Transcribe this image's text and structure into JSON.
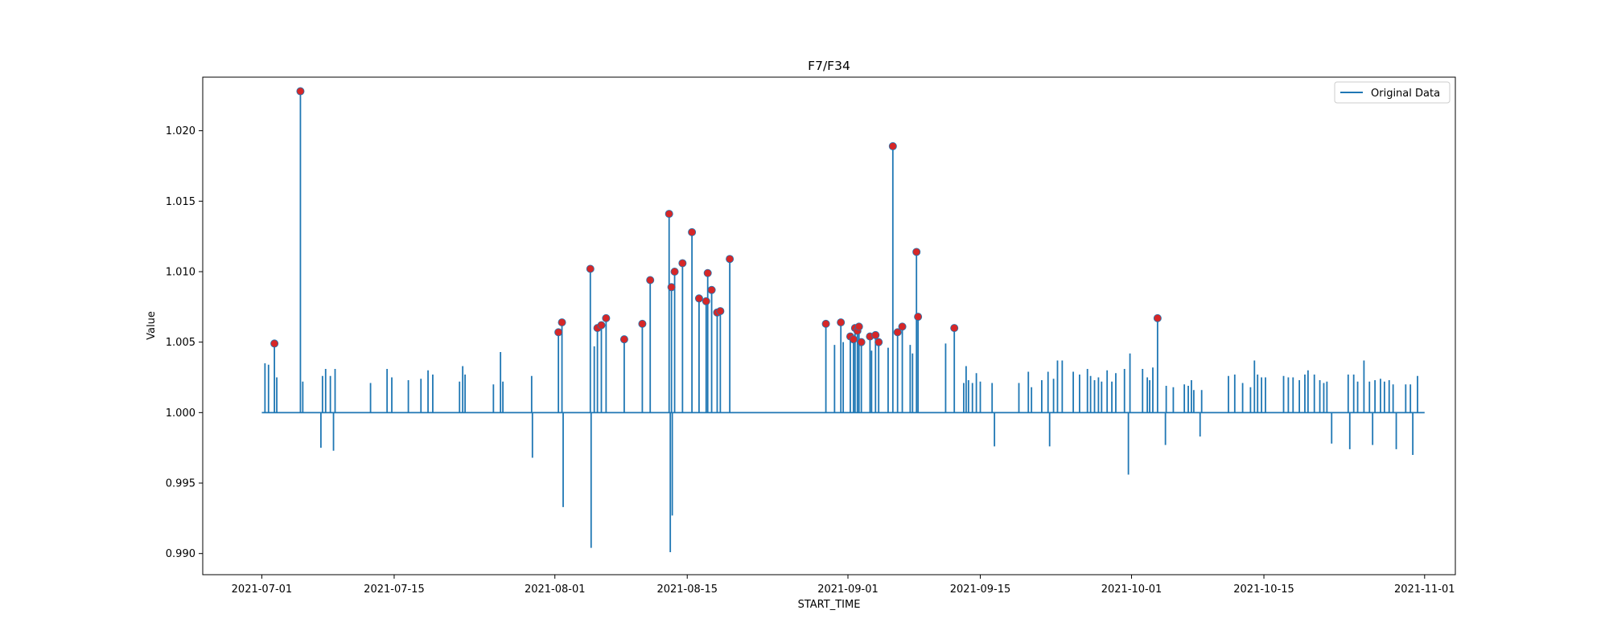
{
  "chart_data": {
    "type": "line",
    "title": "F7/F34",
    "xlabel": "START_TIME",
    "ylabel": "Value",
    "x_ticks": [
      "2021-07-01",
      "2021-07-15",
      "2021-08-01",
      "2021-08-15",
      "2021-09-01",
      "2021-09-15",
      "2021-10-01",
      "2021-10-15",
      "2021-11-01"
    ],
    "y_ticks": [
      0.99,
      0.995,
      1.0,
      1.005,
      1.01,
      1.015,
      1.02
    ],
    "xlim": [
      "2021-06-24T18:00",
      "2021-11-04T06:00"
    ],
    "ylim": [
      0.9885,
      1.0238
    ],
    "legend": {
      "position": "top-right",
      "entries": [
        "Original Data"
      ]
    },
    "series": [
      {
        "name": "Original Data",
        "color": "#1f77b4",
        "baseline": 1.0,
        "spikes": [
          [
            "2021-07-01T08:00",
            1.0035
          ],
          [
            "2021-07-01T17:00",
            1.0034
          ],
          [
            "2021-07-02T08:00",
            1.0049
          ],
          [
            "2021-07-02T14:00",
            1.0025
          ],
          [
            "2021-07-05T02:00",
            1.0228
          ],
          [
            "2021-07-05T08:00",
            1.0022
          ],
          [
            "2021-07-07T06:00",
            0.9975
          ],
          [
            "2021-07-07T10:00",
            1.0026
          ],
          [
            "2021-07-07T18:00",
            1.0031
          ],
          [
            "2021-07-08T06:00",
            1.0026
          ],
          [
            "2021-07-08T14:00",
            0.9973
          ],
          [
            "2021-07-08T18:00",
            1.0031
          ],
          [
            "2021-07-12T12:00",
            1.0021
          ],
          [
            "2021-07-14T06:00",
            1.0031
          ],
          [
            "2021-07-14T18:00",
            1.0025
          ],
          [
            "2021-07-16T12:00",
            1.0023
          ],
          [
            "2021-07-17T20:00",
            1.0024
          ],
          [
            "2021-07-18T14:00",
            1.003
          ],
          [
            "2021-07-19T02:00",
            1.0027
          ],
          [
            "2021-07-21T22:00",
            1.0022
          ],
          [
            "2021-07-22T06:00",
            1.0033
          ],
          [
            "2021-07-22T12:00",
            1.0027
          ],
          [
            "2021-07-25T12:00",
            1.002
          ],
          [
            "2021-07-26T06:00",
            1.0043
          ],
          [
            "2021-07-26T12:00",
            1.0022
          ],
          [
            "2021-07-29T13:00",
            1.0026
          ],
          [
            "2021-07-29T15:00",
            0.9968
          ],
          [
            "2021-08-01T09:00",
            1.0057
          ],
          [
            "2021-08-01T18:00",
            1.0064
          ],
          [
            "2021-08-01T21:00",
            0.9933
          ],
          [
            "2021-08-04T18:00",
            1.0102
          ],
          [
            "2021-08-04T20:00",
            0.9904
          ],
          [
            "2021-08-05T04:00",
            1.0047
          ],
          [
            "2021-08-05T12:00",
            1.006
          ],
          [
            "2021-08-05T22:00",
            1.0062
          ],
          [
            "2021-08-06T10:00",
            1.0067
          ],
          [
            "2021-08-08T08:00",
            1.0052
          ],
          [
            "2021-08-10T06:00",
            1.0063
          ],
          [
            "2021-08-11T02:00",
            1.0094
          ],
          [
            "2021-08-13T02:00",
            1.0141
          ],
          [
            "2021-08-13T05:00",
            0.9901
          ],
          [
            "2021-08-13T08:00",
            1.0089
          ],
          [
            "2021-08-13T10:00",
            0.9927
          ],
          [
            "2021-08-13T16:00",
            1.01
          ],
          [
            "2021-08-14T12:00",
            1.0106
          ],
          [
            "2021-08-15T12:00",
            1.0128
          ],
          [
            "2021-08-16T06:00",
            1.0081
          ],
          [
            "2021-08-17T00:00",
            1.0079
          ],
          [
            "2021-08-17T04:00",
            1.0099
          ],
          [
            "2021-08-17T14:00",
            1.0087
          ],
          [
            "2021-08-18T04:00",
            1.0071
          ],
          [
            "2021-08-18T12:00",
            1.0072
          ],
          [
            "2021-08-19T12:00",
            1.0109
          ],
          [
            "2021-08-29T16:00",
            1.0063
          ],
          [
            "2021-08-30T14:00",
            1.0048
          ],
          [
            "2021-08-31T06:00",
            1.0064
          ],
          [
            "2021-08-31T12:00",
            1.005
          ],
          [
            "2021-09-01T06:00",
            1.0054
          ],
          [
            "2021-09-01T14:00",
            1.0052
          ],
          [
            "2021-09-01T18:00",
            1.006
          ],
          [
            "2021-09-02T00:00",
            1.0058
          ],
          [
            "2021-09-02T04:00",
            1.0061
          ],
          [
            "2021-09-02T10:00",
            1.005
          ],
          [
            "2021-09-03T08:00",
            1.0054
          ],
          [
            "2021-09-03T12:00",
            1.0044
          ],
          [
            "2021-09-03T22:00",
            1.0055
          ],
          [
            "2021-09-04T06:00",
            1.005
          ],
          [
            "2021-09-05T06:00",
            1.0046
          ],
          [
            "2021-09-05T18:00",
            1.0189
          ],
          [
            "2021-09-06T06:00",
            1.0057
          ],
          [
            "2021-09-06T18:00",
            1.0061
          ],
          [
            "2021-09-07T14:00",
            1.0048
          ],
          [
            "2021-09-07T20:00",
            1.0042
          ],
          [
            "2021-09-08T06:00",
            1.0114
          ],
          [
            "2021-09-08T10:00",
            1.0068
          ],
          [
            "2021-09-11T08:00",
            1.0049
          ],
          [
            "2021-09-12T06:00",
            1.006
          ],
          [
            "2021-09-13T06:00",
            1.0021
          ],
          [
            "2021-09-13T12:00",
            1.0033
          ],
          [
            "2021-09-13T18:00",
            1.0023
          ],
          [
            "2021-09-14T04:00",
            1.0021
          ],
          [
            "2021-09-14T14:00",
            1.0028
          ],
          [
            "2021-09-15T00:00",
            1.0022
          ],
          [
            "2021-09-16T06:00",
            1.0021
          ],
          [
            "2021-09-16T12:00",
            0.9976
          ],
          [
            "2021-09-19T02:00",
            1.0021
          ],
          [
            "2021-09-20T02:00",
            1.0029
          ],
          [
            "2021-09-20T10:00",
            1.0018
          ],
          [
            "2021-09-21T12:00",
            1.0023
          ],
          [
            "2021-09-22T04:00",
            1.0029
          ],
          [
            "2021-09-22T08:00",
            0.9976
          ],
          [
            "2021-09-22T18:00",
            1.0024
          ],
          [
            "2021-09-23T04:00",
            1.0037
          ],
          [
            "2021-09-23T16:00",
            1.0037
          ],
          [
            "2021-09-24T20:00",
            1.0029
          ],
          [
            "2021-09-25T12:00",
            1.0027
          ],
          [
            "2021-09-26T08:00",
            1.0031
          ],
          [
            "2021-09-26T16:00",
            1.0026
          ],
          [
            "2021-09-27T02:00",
            1.0023
          ],
          [
            "2021-09-27T12:00",
            1.0025
          ],
          [
            "2021-09-27T20:00",
            1.0022
          ],
          [
            "2021-09-28T10:00",
            1.003
          ],
          [
            "2021-09-28T22:00",
            1.0022
          ],
          [
            "2021-09-29T08:00",
            1.0028
          ],
          [
            "2021-09-30T06:00",
            1.0031
          ],
          [
            "2021-09-30T16:00",
            0.9956
          ],
          [
            "2021-09-30T20:00",
            1.0042
          ],
          [
            "2021-10-02T04:00",
            1.0031
          ],
          [
            "2021-10-02T16:00",
            1.0025
          ],
          [
            "2021-10-02T22:00",
            1.0023
          ],
          [
            "2021-10-03T06:00",
            1.0032
          ],
          [
            "2021-10-03T18:00",
            1.0067
          ],
          [
            "2021-10-04T14:00",
            0.9977
          ],
          [
            "2021-10-04T16:00",
            1.0019
          ],
          [
            "2021-10-05T10:00",
            1.0018
          ],
          [
            "2021-10-06T14:00",
            1.002
          ],
          [
            "2021-10-07T00:00",
            1.0019
          ],
          [
            "2021-10-07T08:00",
            1.0023
          ],
          [
            "2021-10-07T14:00",
            1.0016
          ],
          [
            "2021-10-08T06:00",
            0.9983
          ],
          [
            "2021-10-08T10:00",
            1.0016
          ],
          [
            "2021-10-11T06:00",
            1.0026
          ],
          [
            "2021-10-11T22:00",
            1.0027
          ],
          [
            "2021-10-12T18:00",
            1.0021
          ],
          [
            "2021-10-13T14:00",
            1.0018
          ],
          [
            "2021-10-14T00:00",
            1.0037
          ],
          [
            "2021-10-14T08:00",
            1.0027
          ],
          [
            "2021-10-14T18:00",
            1.0025
          ],
          [
            "2021-10-15T04:00",
            1.0025
          ],
          [
            "2021-10-17T02:00",
            1.0026
          ],
          [
            "2021-10-17T14:00",
            1.0025
          ],
          [
            "2021-10-18T02:00",
            1.0025
          ],
          [
            "2021-10-18T18:00",
            1.0023
          ],
          [
            "2021-10-19T08:00",
            1.0027
          ],
          [
            "2021-10-19T16:00",
            1.003
          ],
          [
            "2021-10-20T08:00",
            1.0027
          ],
          [
            "2021-10-20T22:00",
            1.0023
          ],
          [
            "2021-10-21T08:00",
            1.0021
          ],
          [
            "2021-10-21T16:00",
            1.0022
          ],
          [
            "2021-10-22T04:00",
            0.9978
          ],
          [
            "2021-10-23T22:00",
            1.0027
          ],
          [
            "2021-10-24T02:00",
            0.9974
          ],
          [
            "2021-10-24T12:00",
            1.0027
          ],
          [
            "2021-10-24T22:00",
            1.0022
          ],
          [
            "2021-10-25T14:00",
            1.0037
          ],
          [
            "2021-10-26T04:00",
            1.0022
          ],
          [
            "2021-10-26T12:00",
            0.9977
          ],
          [
            "2021-10-26T18:00",
            1.0023
          ],
          [
            "2021-10-27T08:00",
            1.0024
          ],
          [
            "2021-10-27T18:00",
            1.0022
          ],
          [
            "2021-10-28T06:00",
            1.0023
          ],
          [
            "2021-10-28T16:00",
            1.002
          ],
          [
            "2021-10-29T00:00",
            0.9974
          ],
          [
            "2021-10-30T00:00",
            1.002
          ],
          [
            "2021-10-30T12:00",
            1.002
          ],
          [
            "2021-10-30T18:00",
            0.997
          ],
          [
            "2021-10-31T06:00",
            1.0026
          ]
        ]
      }
    ],
    "markers": {
      "color": "#d62728",
      "edge_color": "#1f77b4",
      "points": [
        [
          "2021-07-02T08:00",
          1.0049
        ],
        [
          "2021-07-05T02:00",
          1.0228
        ],
        [
          "2021-08-01T09:00",
          1.0057
        ],
        [
          "2021-08-01T18:00",
          1.0064
        ],
        [
          "2021-08-04T18:00",
          1.0102
        ],
        [
          "2021-08-05T12:00",
          1.006
        ],
        [
          "2021-08-05T22:00",
          1.0062
        ],
        [
          "2021-08-06T10:00",
          1.0067
        ],
        [
          "2021-08-08T08:00",
          1.0052
        ],
        [
          "2021-08-10T06:00",
          1.0063
        ],
        [
          "2021-08-11T02:00",
          1.0094
        ],
        [
          "2021-08-13T02:00",
          1.0141
        ],
        [
          "2021-08-13T08:00",
          1.0089
        ],
        [
          "2021-08-13T16:00",
          1.01
        ],
        [
          "2021-08-14T12:00",
          1.0106
        ],
        [
          "2021-08-15T12:00",
          1.0128
        ],
        [
          "2021-08-16T06:00",
          1.0081
        ],
        [
          "2021-08-17T00:00",
          1.0079
        ],
        [
          "2021-08-17T04:00",
          1.0099
        ],
        [
          "2021-08-17T14:00",
          1.0087
        ],
        [
          "2021-08-18T04:00",
          1.0071
        ],
        [
          "2021-08-18T12:00",
          1.0072
        ],
        [
          "2021-08-19T12:00",
          1.0109
        ],
        [
          "2021-08-29T16:00",
          1.0063
        ],
        [
          "2021-08-31T06:00",
          1.0064
        ],
        [
          "2021-09-01T06:00",
          1.0054
        ],
        [
          "2021-09-01T14:00",
          1.0052
        ],
        [
          "2021-09-01T18:00",
          1.006
        ],
        [
          "2021-09-02T00:00",
          1.0058
        ],
        [
          "2021-09-02T04:00",
          1.0061
        ],
        [
          "2021-09-02T10:00",
          1.005
        ],
        [
          "2021-09-03T08:00",
          1.0054
        ],
        [
          "2021-09-03T22:00",
          1.0055
        ],
        [
          "2021-09-04T06:00",
          1.005
        ],
        [
          "2021-09-05T18:00",
          1.0189
        ],
        [
          "2021-09-06T06:00",
          1.0057
        ],
        [
          "2021-09-06T18:00",
          1.0061
        ],
        [
          "2021-09-08T06:00",
          1.0114
        ],
        [
          "2021-09-08T10:00",
          1.0068
        ],
        [
          "2021-09-12T06:00",
          1.006
        ],
        [
          "2021-10-03T18:00",
          1.0067
        ]
      ]
    }
  }
}
